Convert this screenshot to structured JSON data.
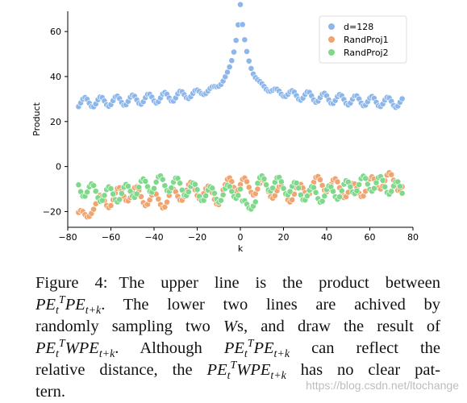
{
  "chart_data": {
    "type": "scatter",
    "xlabel": "k",
    "ylabel": "Product",
    "xlim": [
      -80,
      80
    ],
    "ylim": [
      -27,
      69
    ],
    "xticks": [
      -80,
      -60,
      -40,
      -20,
      0,
      20,
      40,
      60,
      80
    ],
    "yticks": [
      -20,
      0,
      20,
      40,
      60
    ],
    "legend_position": "top-right",
    "grid": false,
    "series": [
      {
        "name": "d=128",
        "color": "#8db7ea",
        "x_range": [
          -75,
          75
        ],
        "description_of_shape": "symmetric peak at k=0"
      },
      {
        "name": "RandProj1",
        "color": "#f0a46f",
        "x_range": [
          -75,
          75
        ]
      },
      {
        "name": "RandProj2",
        "color": "#7fd98b",
        "x_range": [
          -75,
          75
        ]
      }
    ]
  },
  "caption": {
    "line1_label": "Figure 4:",
    "line1_text": "The upper line is the product between",
    "line2_text": "The lower two lines are achived by",
    "line3_text": "randomly sampling two",
    "line3_w": "W",
    "line3_rest": "s, and draw the result of",
    "line4_text": ". Although",
    "line4_rest": "can reflect the",
    "line5_text": "relative distance, the",
    "line5_rest": "has no clear pat-",
    "line6_text": "tern.",
    "pe": "PE",
    "w": "W",
    "sub_t": "t",
    "sup_T": "T",
    "sub_tk": "t+k"
  },
  "watermark": "https://blog.csdn.net/ltochange"
}
